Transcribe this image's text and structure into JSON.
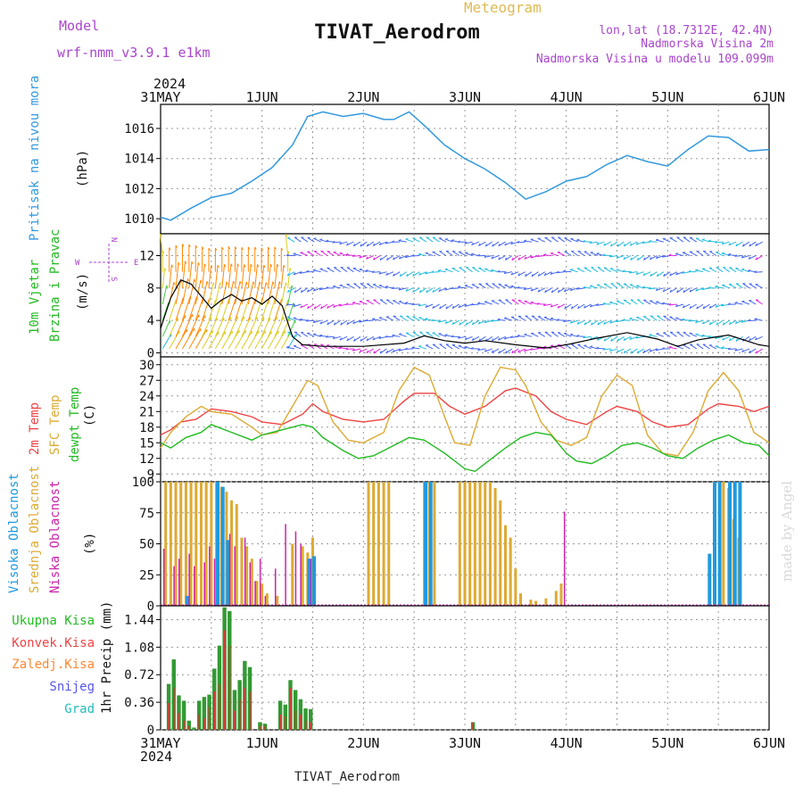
{
  "header": {
    "model_label": "Model",
    "model_name": "wrf-nmm_v3.9.1 e1km",
    "meteogram_label": "Meteogram",
    "station_title": "TIVAT_Aerodrom",
    "lonlat": "lon,lat (18.7312E, 42.4N)",
    "elevation": "Nadmorska Visina 2m",
    "model_elevation": "Nadmorska Visina u modelu 109.099m",
    "footer_station": "TIVAT_Aerodrom",
    "watermark": "made by Angel"
  },
  "time_axis": {
    "year": "2024",
    "labels": [
      "31MAY",
      "1JUN",
      "2JUN",
      "3JUN",
      "4JUN",
      "5JUN",
      "6JUN"
    ]
  },
  "colors": {
    "pressure": "#3399dd",
    "temp2m": "#ee4444",
    "sfc_temp": "#ddaa33",
    "dewpt": "#22bb22",
    "high_cloud": "#2299dd",
    "mid_cloud": "#ddaa33",
    "low_cloud": "#cc22aa",
    "total_precip": "#339933",
    "convective_precip": "#dd3333",
    "frozen_precip": "#ff8833",
    "snow": "#5555ee",
    "graupel": "#22bbbb",
    "wind_calm": "#dd22dd",
    "wind_strong": "#ff8800",
    "header_purple": "#aa44cc",
    "meteogram_gold": "#ddbb55"
  },
  "chart_data": [
    {
      "type": "line",
      "panel": "pressure",
      "title": "Pritisak na nivou mora",
      "ylabel": "(hPa)",
      "yticks": [
        1010,
        1012,
        1014,
        1016
      ],
      "ylim": [
        1009,
        1017.6
      ],
      "x_unit": "days since 31MAY 00UTC",
      "x": [
        0,
        0.1,
        0.3,
        0.5,
        0.7,
        0.9,
        1.1,
        1.3,
        1.45,
        1.6,
        1.8,
        2.0,
        2.2,
        2.3,
        2.45,
        2.6,
        2.8,
        3.0,
        3.2,
        3.4,
        3.6,
        3.8,
        4.0,
        4.2,
        4.4,
        4.6,
        4.8,
        5.0,
        5.2,
        5.4,
        5.6,
        5.8,
        6.0
      ],
      "values": [
        1010.1,
        1009.9,
        1010.7,
        1011.4,
        1011.7,
        1012.5,
        1013.4,
        1014.9,
        1016.8,
        1017.1,
        1016.8,
        1017.0,
        1016.6,
        1016.6,
        1017.1,
        1016.2,
        1014.9,
        1014.0,
        1013.3,
        1012.4,
        1011.3,
        1011.8,
        1012.5,
        1012.8,
        1013.6,
        1014.2,
        1013.8,
        1013.5,
        1014.6,
        1015.5,
        1015.4,
        1014.5,
        1014.6
      ]
    },
    {
      "type": "line",
      "panel": "wind",
      "title": "10m Vjetar Brzina i Pravac",
      "ylabel": "(m/s)",
      "compass": {
        "n": "N",
        "s": "S",
        "e": "E",
        "w": "W"
      },
      "yticks": [
        0,
        4,
        8,
        12
      ],
      "ylim": [
        -0.5,
        14.7
      ],
      "x_unit": "days since 31MAY 00UTC",
      "x": [
        0,
        0.1,
        0.2,
        0.3,
        0.4,
        0.5,
        0.6,
        0.7,
        0.8,
        0.9,
        1.0,
        1.1,
        1.2,
        1.3,
        1.4,
        1.6,
        2.0,
        2.4,
        2.6,
        2.8,
        3.0,
        3.2,
        3.5,
        3.8,
        4.0,
        4.3,
        4.6,
        4.9,
        5.1,
        5.3,
        5.6,
        5.9,
        6.0
      ],
      "values": [
        3.0,
        6.8,
        9.0,
        8.5,
        7.0,
        5.5,
        6.5,
        7.2,
        6.4,
        6.8,
        6.0,
        7.0,
        5.8,
        2.0,
        1.0,
        0.8,
        0.8,
        1.2,
        2.1,
        1.5,
        1.2,
        1.5,
        1.0,
        0.6,
        1.0,
        1.8,
        2.5,
        1.7,
        0.8,
        1.6,
        2.2,
        1.0,
        0.8
      ]
    },
    {
      "type": "line",
      "panel": "temperature",
      "title": "2m Temp / SFC Temp / dewpt Temp",
      "series_labels": [
        "2m Temp",
        "SFC Temp",
        "dewpt Temp"
      ],
      "ylabel": "(C)",
      "yticks": [
        9,
        12,
        15,
        18,
        21,
        24,
        27,
        30
      ],
      "ylim": [
        7.5,
        31.5
      ],
      "x_unit": "days since 31MAY 00UTC",
      "series": [
        {
          "name": "2m Temp",
          "x": [
            0,
            0.1,
            0.2,
            0.35,
            0.5,
            0.7,
            0.9,
            1.0,
            1.2,
            1.4,
            1.5,
            1.6,
            1.8,
            2.0,
            2.2,
            2.4,
            2.5,
            2.7,
            2.85,
            3.0,
            3.2,
            3.4,
            3.5,
            3.7,
            3.85,
            4.0,
            4.2,
            4.4,
            4.5,
            4.7,
            4.85,
            5.0,
            5.2,
            5.4,
            5.5,
            5.7,
            5.85,
            6.0
          ],
          "values": [
            16.5,
            17.5,
            19.0,
            19.5,
            21.5,
            21.0,
            20.0,
            19.0,
            18.5,
            20.5,
            22.5,
            21.0,
            19.5,
            19.0,
            19.5,
            23.0,
            24.5,
            24.5,
            22.0,
            20.5,
            22.0,
            25.0,
            25.5,
            24.0,
            21.0,
            19.5,
            18.5,
            21.0,
            22.0,
            21.0,
            19.0,
            18.0,
            18.5,
            21.5,
            22.5,
            22.0,
            21.0,
            22.0
          ]
        },
        {
          "name": "SFC Temp",
          "x": [
            0,
            0.1,
            0.25,
            0.4,
            0.5,
            0.7,
            0.9,
            1.0,
            1.15,
            1.3,
            1.45,
            1.55,
            1.7,
            1.85,
            2.0,
            2.2,
            2.35,
            2.5,
            2.65,
            2.8,
            2.9,
            3.05,
            3.2,
            3.35,
            3.5,
            3.6,
            3.75,
            3.9,
            4.05,
            4.2,
            4.35,
            4.5,
            4.65,
            4.8,
            4.95,
            5.1,
            5.25,
            5.4,
            5.55,
            5.7,
            5.85,
            6.0
          ],
          "values": [
            14.0,
            17.0,
            20.0,
            22.0,
            21.0,
            20.5,
            18.0,
            16.5,
            17.0,
            22.0,
            27.0,
            26.0,
            19.0,
            15.5,
            15.0,
            17.0,
            25.0,
            29.5,
            28.0,
            20.0,
            15.0,
            14.5,
            24.0,
            29.5,
            29.0,
            26.0,
            19.0,
            15.5,
            14.5,
            16.0,
            24.0,
            28.0,
            26.0,
            16.5,
            13.0,
            12.5,
            17.0,
            25.0,
            28.5,
            25.0,
            17.0,
            15.0
          ]
        },
        {
          "name": "dewpt Temp",
          "x": [
            0,
            0.1,
            0.25,
            0.4,
            0.5,
            0.7,
            0.9,
            1.0,
            1.2,
            1.4,
            1.5,
            1.6,
            1.8,
            1.95,
            2.1,
            2.3,
            2.45,
            2.6,
            2.8,
            3.0,
            3.1,
            3.2,
            3.4,
            3.55,
            3.7,
            3.85,
            4.0,
            4.1,
            4.25,
            4.4,
            4.55,
            4.7,
            4.85,
            5.0,
            5.15,
            5.3,
            5.45,
            5.6,
            5.75,
            5.9,
            6.0
          ],
          "values": [
            15.0,
            14.0,
            16.0,
            17.0,
            18.5,
            17.0,
            15.5,
            16.5,
            17.5,
            18.5,
            18.0,
            16.0,
            13.5,
            12.0,
            12.5,
            14.5,
            16.0,
            15.5,
            13.0,
            10.0,
            9.5,
            11.0,
            14.0,
            16.0,
            17.0,
            16.5,
            13.0,
            11.5,
            11.0,
            12.5,
            14.5,
            15.0,
            14.0,
            12.5,
            12.0,
            14.0,
            15.5,
            16.5,
            15.0,
            14.5,
            12.5
          ]
        }
      ]
    },
    {
      "type": "bar",
      "panel": "cloud",
      "title": "Visoka Oblacnost / Srednja Oblacnost / Niska Oblacnost",
      "series_labels": [
        "Visoka Oblacnost",
        "Srednja Oblacnost",
        "Niska Oblacnost"
      ],
      "ylabel": "(%)",
      "yticks": [
        0,
        25,
        50,
        75,
        100
      ],
      "ylim": [
        0,
        100
      ],
      "x_unit": "days since 31MAY 00UTC",
      "series": [
        {
          "name": "Srednja Oblacnost",
          "x": [
            0.05,
            0.1,
            0.15,
            0.2,
            0.25,
            0.3,
            0.35,
            0.4,
            0.45,
            0.5,
            0.55,
            0.6,
            0.65,
            0.7,
            0.75,
            0.8,
            0.85,
            0.9,
            0.95,
            1.0,
            1.05,
            1.15,
            1.3,
            1.4,
            1.45,
            1.5,
            2.05,
            2.1,
            2.15,
            2.2,
            2.25,
            2.6,
            2.65,
            2.7,
            2.95,
            3.0,
            3.05,
            3.1,
            3.15,
            3.2,
            3.25,
            3.3,
            3.35,
            3.4,
            3.45,
            3.5,
            3.55,
            3.65,
            3.7,
            3.8,
            3.9,
            3.95,
            5.55,
            5.6,
            5.65,
            5.7
          ],
          "values": [
            100,
            100,
            100,
            100,
            100,
            100,
            100,
            100,
            100,
            100,
            100,
            96,
            92,
            85,
            82,
            55,
            48,
            38,
            20,
            18,
            10,
            8,
            50,
            48,
            43,
            55,
            100,
            100,
            100,
            100,
            100,
            100,
            100,
            100,
            100,
            100,
            100,
            100,
            100,
            100,
            100,
            95,
            85,
            65,
            55,
            30,
            10,
            5,
            4,
            6,
            12,
            18,
            100,
            95,
            70,
            55
          ]
        },
        {
          "name": "Visoka Oblacnost",
          "x": [
            0.25,
            0.55,
            0.6,
            0.65,
            1.45,
            1.5,
            2.6,
            2.65,
            5.4,
            5.45,
            5.5,
            5.6,
            5.65,
            5.7
          ],
          "values": [
            8,
            100,
            96,
            53,
            38,
            40,
            100,
            100,
            42,
            100,
            100,
            100,
            100,
            100
          ]
        },
        {
          "name": "Niska Oblacnost",
          "x": [
            0.05,
            0.15,
            0.2,
            0.3,
            0.35,
            0.45,
            0.5,
            0.55,
            0.7,
            0.75,
            0.85,
            0.9,
            0.95,
            1.0,
            1.05,
            1.15,
            1.25,
            1.35,
            1.4,
            1.5,
            4.0
          ],
          "values": [
            46,
            32,
            38,
            42,
            32,
            35,
            48,
            38,
            58,
            48,
            55,
            35,
            20,
            38,
            8,
            30,
            66,
            60,
            50,
            38,
            76
          ]
        }
      ]
    },
    {
      "type": "bar",
      "panel": "precip",
      "title": "1hr Precip",
      "series_labels": [
        "Ukupna Kisa",
        "Konvek.Kisa",
        "Zaledj.Kisa",
        "Snijeg",
        "Grad"
      ],
      "ylabel": "1hr Precip (mm)",
      "yticks": [
        0,
        0.36,
        0.72,
        1.08,
        1.44
      ],
      "ylim": [
        0,
        1.62
      ],
      "x_unit": "days since 31MAY 00UTC",
      "series": [
        {
          "name": "Ukupna Kisa",
          "x": [
            0.08,
            0.13,
            0.18,
            0.23,
            0.28,
            0.33,
            0.38,
            0.43,
            0.48,
            0.53,
            0.58,
            0.63,
            0.68,
            0.73,
            0.78,
            0.83,
            0.88,
            0.98,
            1.03,
            1.18,
            1.23,
            1.28,
            1.33,
            1.38,
            1.43,
            1.48,
            3.08
          ],
          "values": [
            0.6,
            0.92,
            0.45,
            0.38,
            0.12,
            0.03,
            0.38,
            0.43,
            0.46,
            0.8,
            1.1,
            1.6,
            1.55,
            0.52,
            0.65,
            0.9,
            0.82,
            0.1,
            0.08,
            0.38,
            0.33,
            0.65,
            0.52,
            0.4,
            0.28,
            0.27,
            0.1
          ]
        },
        {
          "name": "Konvek.Kisa",
          "x": [
            0.08,
            0.13,
            0.18,
            0.23,
            0.28,
            0.33,
            0.38,
            0.43,
            0.48,
            0.53,
            0.58,
            0.63,
            0.68,
            0.73,
            0.78,
            0.83,
            0.88,
            0.98,
            1.03,
            1.18,
            1.23,
            1.28,
            1.33,
            1.38,
            1.43,
            1.48,
            3.08
          ],
          "values": [
            0.35,
            0.55,
            0.22,
            0.12,
            0.05,
            0.0,
            0.2,
            0.15,
            0.3,
            0.5,
            0.6,
            1.3,
            1.1,
            0.25,
            0.4,
            0.55,
            0.5,
            0.05,
            0.05,
            0.2,
            0.18,
            0.55,
            0.25,
            0.2,
            0.12,
            0.1,
            0.1
          ]
        }
      ]
    }
  ]
}
